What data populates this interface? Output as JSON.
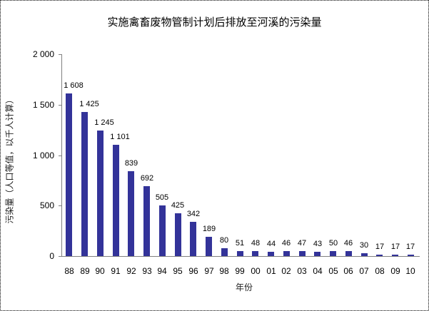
{
  "chart_data": {
    "type": "bar",
    "title": "实施禽畜废物管制计划后排放至河溪的污染量",
    "xlabel": "年份",
    "ylabel": "污染量（人口等值，以千人计算）",
    "categories": [
      "88",
      "89",
      "90",
      "91",
      "92",
      "93",
      "94",
      "95",
      "96",
      "97",
      "98",
      "99",
      "00",
      "01",
      "02",
      "03",
      "04",
      "05",
      "06",
      "07",
      "08",
      "09",
      "10"
    ],
    "values": [
      1608,
      1425,
      1245,
      1101,
      839,
      692,
      505,
      425,
      342,
      189,
      80,
      51,
      48,
      44,
      46,
      47,
      43,
      50,
      46,
      30,
      17,
      17,
      17
    ],
    "value_labels": [
      "1 608",
      "1 425",
      "1 245",
      "1 101",
      "839",
      "692",
      "505",
      "425",
      "342",
      "189",
      "80",
      "51",
      "48",
      "44",
      "46",
      "47",
      "43",
      "50",
      "46",
      "30",
      "17",
      "17",
      "17"
    ],
    "ylim": [
      0,
      2000
    ],
    "yticks": [
      0,
      500,
      1000,
      1500,
      2000
    ],
    "ytick_labels": [
      "0",
      "500",
      "1 000",
      "1 500",
      "2 000"
    ],
    "grid": false,
    "legend": null,
    "bar_color": "#333399"
  }
}
